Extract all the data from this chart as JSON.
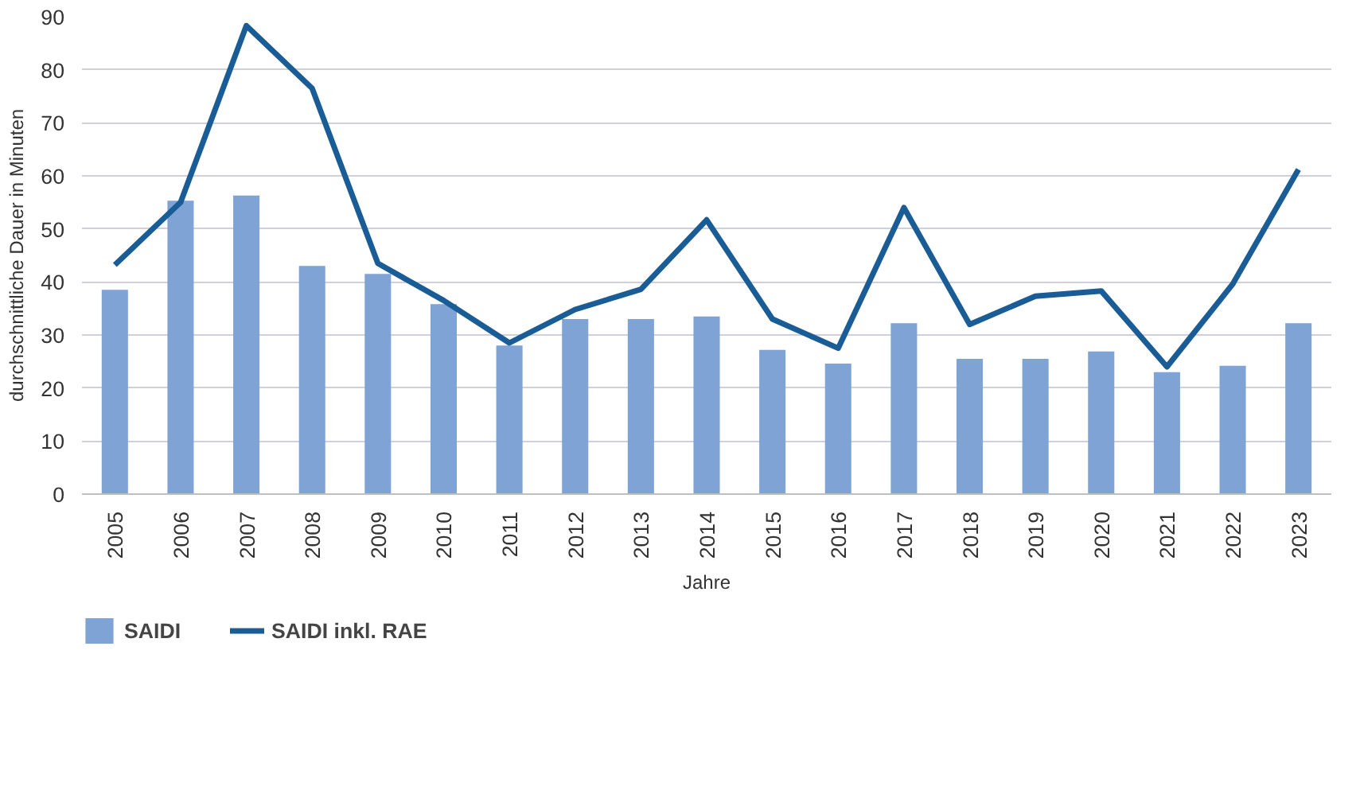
{
  "chart_data": {
    "type": "bar",
    "xlabel": "Jahre",
    "ylabel": "durchschnittliche Dauer in Minuten",
    "categories": [
      "2005",
      "2006",
      "2007",
      "2008",
      "2009",
      "2010",
      "2011",
      "2012",
      "2013",
      "2014",
      "2015",
      "2016",
      "2017",
      "2018",
      "2019",
      "2020",
      "2021",
      "2022",
      "2023"
    ],
    "series": [
      {
        "name": "SAIDI",
        "color": "#7ea3d4",
        "values": [
          38.5,
          55.3,
          56.3,
          43,
          41.5,
          35.8,
          28,
          33,
          33,
          33.5,
          27.2,
          24.6,
          32.2,
          25.5,
          25.5,
          26.9,
          23,
          24.2,
          32.2
        ]
      },
      {
        "name": "SAIDI inkl. RAE",
        "type": "line",
        "color": "#1a5d96",
        "values": [
          43.2,
          55,
          88.3,
          76.5,
          43.5,
          36.5,
          28.5,
          34.8,
          38.6,
          51.7,
          33,
          27.5,
          54,
          32,
          37.3,
          38.3,
          24,
          39.6,
          61.2
        ]
      }
    ],
    "ylim": [
      0,
      90
    ],
    "yticks": [
      0,
      10,
      20,
      30,
      40,
      50,
      60,
      70,
      80,
      90
    ],
    "grid": "y",
    "legend": "bottom left",
    "line_style": "solid",
    "marker": "none"
  }
}
